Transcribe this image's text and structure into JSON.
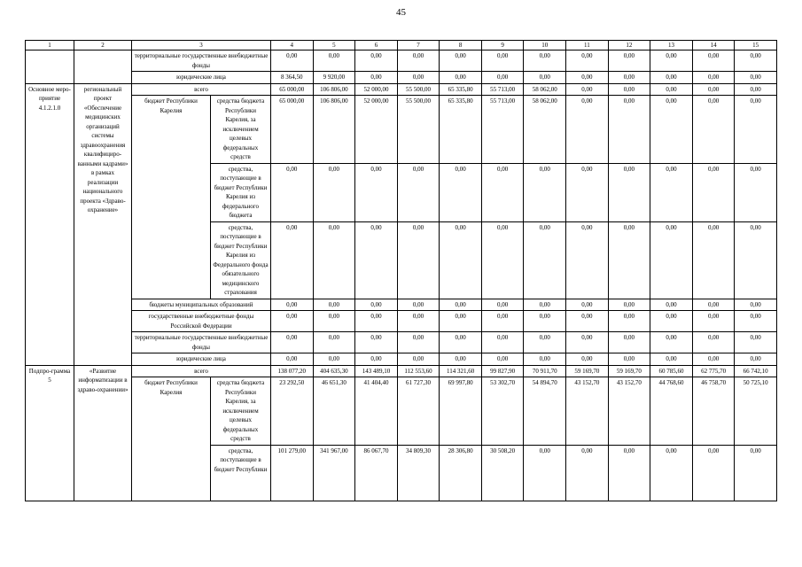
{
  "page": {
    "number": "45"
  },
  "table": {
    "column_numbers": [
      "1",
      "2",
      "3",
      "4",
      "5",
      "6",
      "7",
      "8",
      "9",
      "10",
      "11",
      "12",
      "13",
      "14",
      "15"
    ],
    "sections": {
      "main_event": {
        "code": "Основное меро-приятие 4.1.2.1.0",
        "name": "региональный проект «Обеспечение медицинских организаций системы здравоохранения квалифициро-ванными кадрами» в рамках реализации национального проекта «Здраво-охранение»"
      },
      "subprogram5": {
        "code": "Подпро-грамма 5",
        "name": "«Развитие информатизации в здраво-охранении»"
      }
    },
    "labels": {
      "budget_rk": "бюджет Республики Карелия"
    },
    "rows": [
      {
        "label": "территориальные государственные внебюджетные фонды",
        "values": [
          "0,00",
          "0,00",
          "0,00",
          "0,00",
          "0,00",
          "0,00",
          "0,00",
          "0,00",
          "0,00",
          "0,00",
          "0,00",
          "0,00"
        ]
      },
      {
        "label": "юридические лица",
        "values": [
          "8 364,50",
          "9 920,00",
          "0,00",
          "0,00",
          "0,00",
          "0,00",
          "0,00",
          "0,00",
          "0,00",
          "0,00",
          "0,00",
          "0,00"
        ]
      },
      {
        "label": "всего",
        "values": [
          "65 000,00",
          "106 806,00",
          "52 000,00",
          "55 500,00",
          "65 335,80",
          "55 713,00",
          "58 062,00",
          "0,00",
          "0,00",
          "0,00",
          "0,00",
          "0,00"
        ]
      },
      {
        "label": "средства бюджета Республики Карелия, за исключением целевых федеральных средств",
        "values": [
          "65 000,00",
          "106 806,00",
          "52 000,00",
          "55 500,00",
          "65 335,80",
          "55 713,00",
          "58 062,00",
          "0,00",
          "0,00",
          "0,00",
          "0,00",
          "0,00"
        ]
      },
      {
        "label": "средства, поступающие в бюджет Республики Карелия из федерального бюджета",
        "values": [
          "0,00",
          "0,00",
          "0,00",
          "0,00",
          "0,00",
          "0,00",
          "0,00",
          "0,00",
          "0,00",
          "0,00",
          "0,00",
          "0,00"
        ]
      },
      {
        "label": "средства, поступающие в бюджет Республики Карелия из Федерального фонда обязательного медицинского страхования",
        "values": [
          "0,00",
          "0,00",
          "0,00",
          "0,00",
          "0,00",
          "0,00",
          "0,00",
          "0,00",
          "0,00",
          "0,00",
          "0,00",
          "0,00"
        ]
      },
      {
        "label": "бюджеты муниципальных образований",
        "values": [
          "0,00",
          "0,00",
          "0,00",
          "0,00",
          "0,00",
          "0,00",
          "0,00",
          "0,00",
          "0,00",
          "0,00",
          "0,00",
          "0,00"
        ]
      },
      {
        "label": "государственные внебюджетные фонды Российской Федерации",
        "values": [
          "0,00",
          "0,00",
          "0,00",
          "0,00",
          "0,00",
          "0,00",
          "0,00",
          "0,00",
          "0,00",
          "0,00",
          "0,00",
          "0,00"
        ]
      },
      {
        "label": "территориальные государственные внебюджетные фонды",
        "values": [
          "0,00",
          "0,00",
          "0,00",
          "0,00",
          "0,00",
          "0,00",
          "0,00",
          "0,00",
          "0,00",
          "0,00",
          "0,00",
          "0,00"
        ]
      },
      {
        "label": "юридические лица",
        "values": [
          "0,00",
          "0,00",
          "0,00",
          "0,00",
          "0,00",
          "0,00",
          "0,00",
          "0,00",
          "0,00",
          "0,00",
          "0,00",
          "0,00"
        ]
      },
      {
        "label": "всего",
        "values": [
          "138 077,20",
          "404 635,30",
          "143 489,10",
          "112 553,60",
          "114 321,60",
          "99 827,90",
          "70 911,70",
          "59 169,70",
          "59 169,70",
          "60 785,60",
          "62 775,70",
          "66 742,10"
        ]
      },
      {
        "label": "средства бюджета Республики Карелия, за исключением целевых федеральных средств",
        "values": [
          "23 292,50",
          "46 651,30",
          "41 404,40",
          "61 727,30",
          "69 997,80",
          "53 302,70",
          "54 894,70",
          "43 152,70",
          "43 152,70",
          "44 768,60",
          "46 758,70",
          "50 725,10"
        ]
      },
      {
        "label": "средства, поступающие в бюджет Республики",
        "values": [
          "101 279,00",
          "341 967,00",
          "86 067,70",
          "34 809,30",
          "28 306,80",
          "30 508,20",
          "0,00",
          "0,00",
          "0,00",
          "0,00",
          "0,00",
          "0,00"
        ]
      }
    ]
  }
}
